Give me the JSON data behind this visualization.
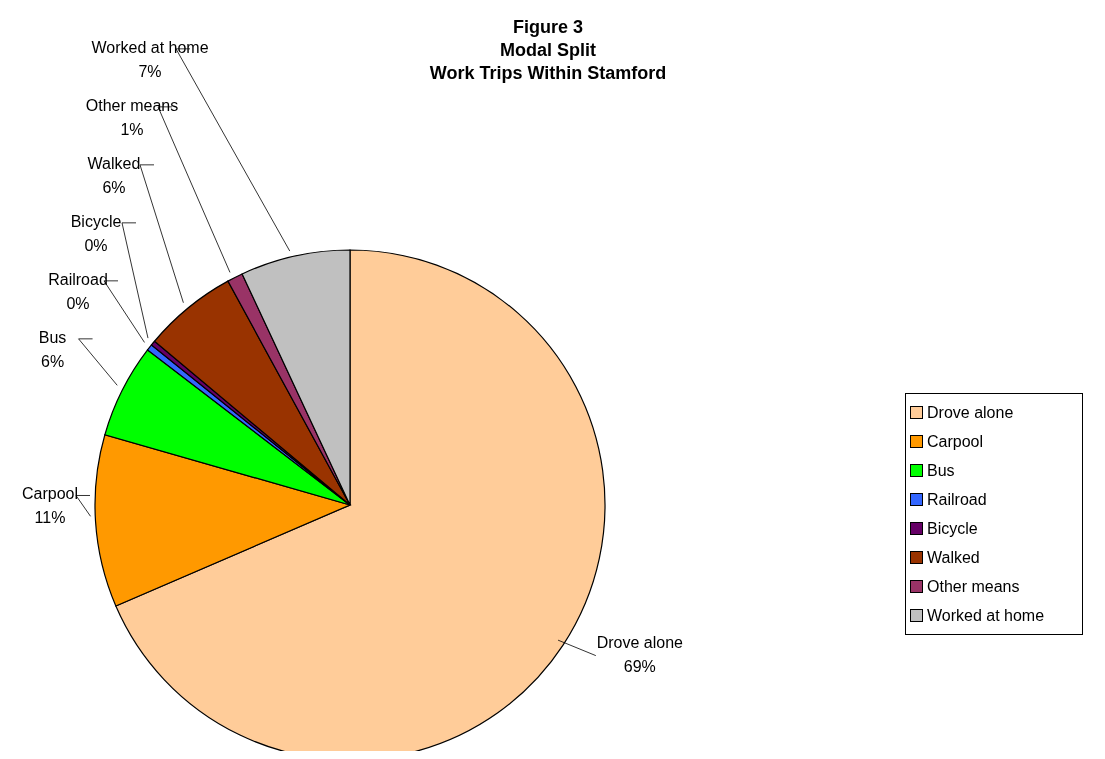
{
  "chart_data": {
    "type": "pie",
    "title": "Figure 3\nModal Split\nWork Trips Within Stamford",
    "categories": [
      "Drove alone",
      "Carpool",
      "Bus",
      "Railroad",
      "Bicycle",
      "Walked",
      "Other means",
      "Worked at home"
    ],
    "values": [
      69,
      11,
      6,
      0.4,
      0.3,
      6,
      1,
      7
    ],
    "value_labels": [
      "69%",
      "11%",
      "6%",
      "0%",
      "0%",
      "6%",
      "1%",
      "7%"
    ],
    "colors": [
      "#ffcc99",
      "#ff9900",
      "#00ff00",
      "#3366ff",
      "#660066",
      "#993300",
      "#993366",
      "#c0c0c0"
    ],
    "legend": "right"
  }
}
